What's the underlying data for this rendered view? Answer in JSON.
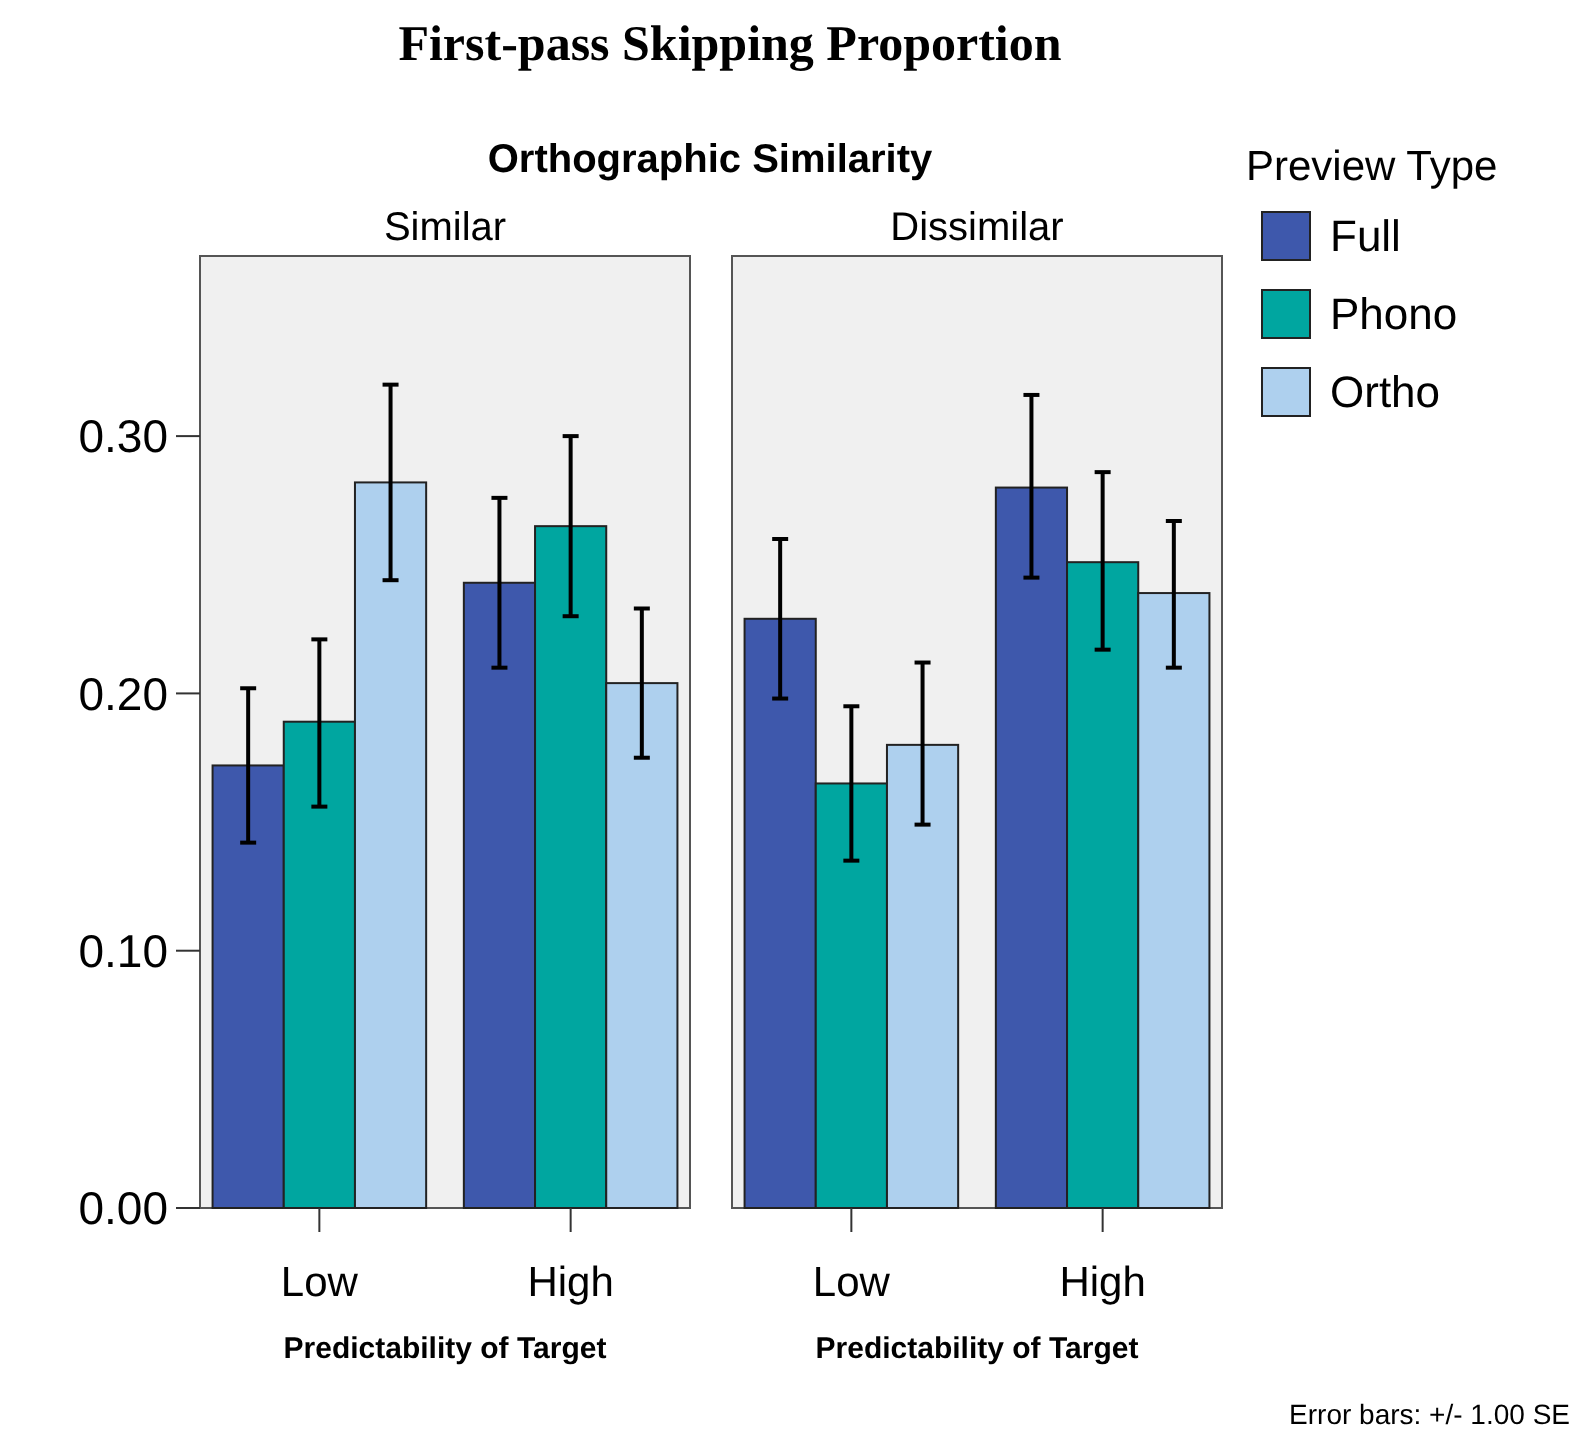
{
  "chart_data": [
    {
      "type": "bar",
      "title": "Similar",
      "annotations": [
        "First-pass Skipping Proportion",
        "Orthographic Similarity"
      ],
      "xlabel": "Predictability of Target",
      "categories": [
        "Low",
        "High"
      ],
      "ylim": [
        0,
        0.37
      ],
      "yticks": [
        {
          "value": 0,
          "label": "0.00"
        },
        {
          "value": 0.1,
          "label": "0.10"
        },
        {
          "value": 0.2,
          "label": "0.20"
        },
        {
          "value": 0.3,
          "label": "0.30"
        }
      ],
      "legend": false,
      "grid": false,
      "series": [
        {
          "color": "#3e58ac",
          "values": [
            0.172,
            0.243
          ],
          "errors": [
            [
              0.142,
              0.202
            ],
            [
              0.21,
              0.276
            ]
          ]
        },
        {
          "color": "#00a6a0",
          "values": [
            0.189,
            0.265
          ],
          "errors": [
            [
              0.156,
              0.221
            ],
            [
              0.23,
              0.3
            ]
          ]
        },
        {
          "color": "#aed0ee",
          "values": [
            0.282,
            0.204
          ],
          "errors": [
            [
              0.244,
              0.32
            ],
            [
              0.175,
              0.233
            ]
          ]
        }
      ]
    },
    {
      "type": "bar",
      "title": "Dissimilar",
      "annotations": [
        "Error bars: +/- 1.00 SE"
      ],
      "xlabel": "Predictability of Target",
      "categories": [
        "Low",
        "High"
      ],
      "ylim": [
        0,
        0.37
      ],
      "tick_labels": "x",
      "legend": "right",
      "legend_title": "Preview Type",
      "grid": false,
      "series": [
        {
          "name": "Full",
          "color": "#3e58ac",
          "values": [
            0.229,
            0.28
          ],
          "errors": [
            [
              0.198,
              0.26
            ],
            [
              0.245,
              0.316
            ]
          ]
        },
        {
          "name": "Phono",
          "color": "#00a6a0",
          "values": [
            0.165,
            0.251
          ],
          "errors": [
            [
              0.135,
              0.195
            ],
            [
              0.217,
              0.286
            ]
          ]
        },
        {
          "name": "Ortho",
          "color": "#aed0ee",
          "values": [
            0.18,
            0.239
          ],
          "errors": [
            [
              0.149,
              0.212
            ],
            [
              0.21,
              0.267
            ]
          ]
        }
      ]
    }
  ]
}
